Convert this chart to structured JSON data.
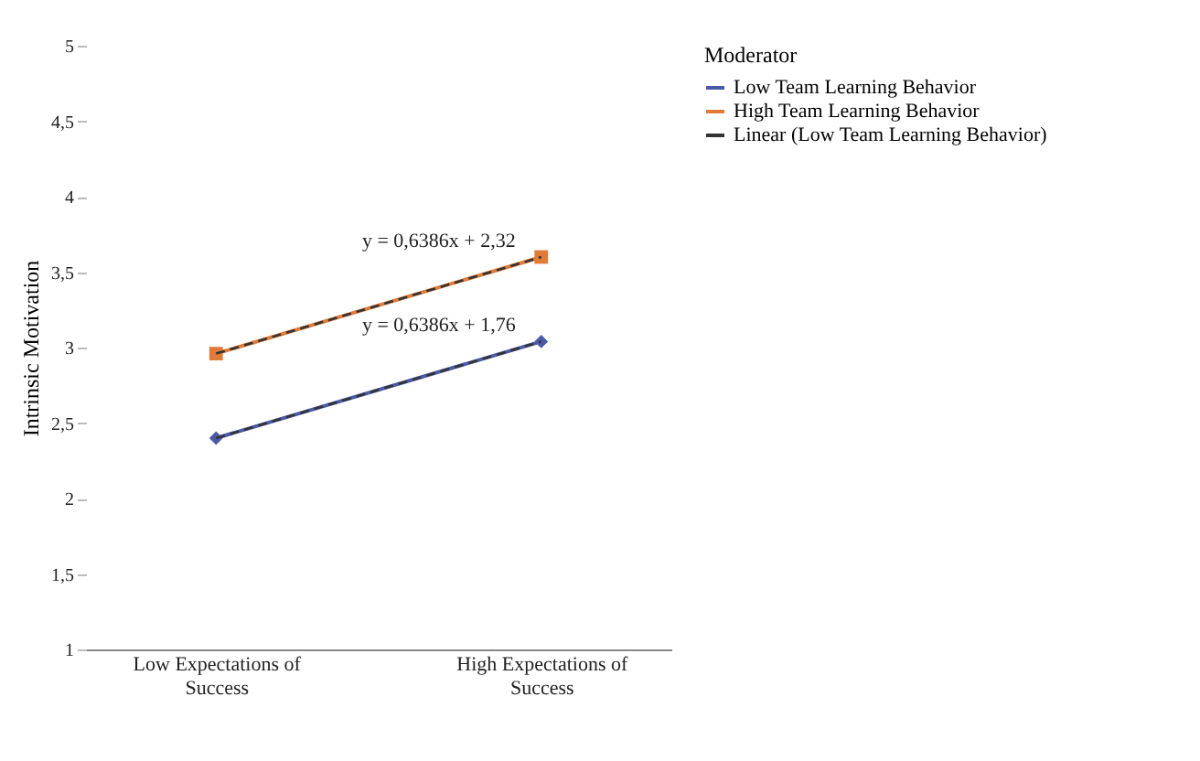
{
  "chart_data": {
    "type": "line",
    "ylabel": "Intrinsic Motivation",
    "legend_title": "Moderator",
    "legend": "right",
    "grid": false,
    "categories": [
      "Low Expectations of Success",
      "High Expectations of Success"
    ],
    "ylim": [
      1,
      5
    ],
    "yticks": [
      1,
      {
        "value": 1.5,
        "label": "1,5"
      },
      2,
      {
        "value": 2.5,
        "label": "2,5"
      },
      3,
      {
        "value": 3.5,
        "label": "3,5"
      },
      4,
      {
        "value": 4.5,
        "label": "4,5"
      },
      5
    ],
    "series": [
      {
        "name": "Low Team Learning Behavior",
        "color": "#4a5aa8",
        "marker": "diamond",
        "line_style": "solid",
        "values": [
          2.4,
          3.04
        ]
      },
      {
        "name": "High Team Learning Behavior",
        "color": "#e07b39",
        "marker": "square",
        "line_style": "solid",
        "values": [
          2.96,
          3.6
        ]
      },
      {
        "name": "Linear (Low Team Learning Behavior)",
        "color": "#333333",
        "marker": "none",
        "line_style": "dashed",
        "values": [
          2.4,
          3.04
        ]
      },
      {
        "color": "#333333",
        "marker": "none",
        "line_style": "dashed",
        "values": [
          2.96,
          3.6
        ]
      }
    ],
    "annotations": [
      {
        "text": "y = 0,6386x + 2,32",
        "x": "High Expectations of Success",
        "y": 3.62
      },
      {
        "text": "y = 0,6386x + 1,76",
        "x": "High Expectations of Success",
        "y": 3.06
      }
    ]
  }
}
